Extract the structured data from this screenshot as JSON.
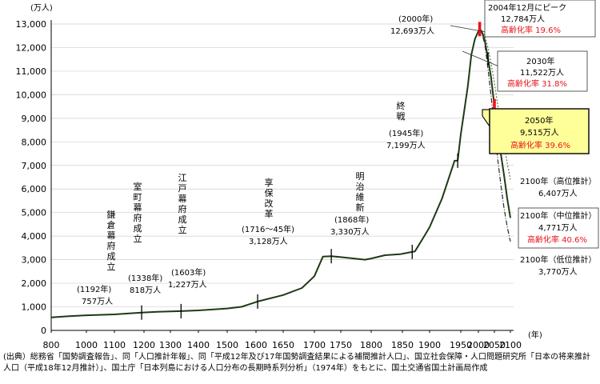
{
  "chart_data": {
    "type": "line",
    "yunit": "(万人)",
    "xunit": "(年)",
    "xlim": [
      800,
      2100
    ],
    "ylim": [
      0,
      13000
    ],
    "xticks": [
      "800",
      "1000",
      "1100",
      "1200",
      "1300",
      "1400",
      "1500",
      "1600",
      "1650",
      "1700",
      "1750",
      "1800",
      "1850",
      "1900",
      "1950",
      "2000",
      "2050",
      "2100"
    ],
    "yticks": [
      "0",
      "1,000",
      "2,000",
      "3,000",
      "4,000",
      "5,000",
      "6,000",
      "7,000",
      "8,000",
      "9,000",
      "10,000",
      "11,000",
      "12,000",
      "13,000"
    ],
    "series": [
      {
        "key": "history",
        "color": "#1e3a14",
        "x": [
          800,
          900,
          1000,
          1100,
          1150,
          1192,
          1250,
          1338,
          1400,
          1500,
          1550,
          1603,
          1650,
          1680,
          1700,
          1716,
          1732,
          1750,
          1790,
          1800,
          1822,
          1846,
          1868,
          1873,
          1890,
          1900,
          1920,
          1930,
          1940,
          1945,
          1950,
          1960,
          1970,
          1980,
          1990,
          2000,
          2004
        ],
        "y": [
          551,
          600,
          640,
          680,
          720,
          757,
          790,
          818,
          850,
          930,
          1000,
          1227,
          1500,
          1800,
          2300,
          3128,
          3150,
          3110,
          3000,
          3050,
          3190,
          3230,
          3330,
          3350,
          3990,
          4380,
          5600,
          6400,
          7200,
          7199,
          8320,
          9340,
          10370,
          11700,
          12360,
          12693,
          12784
        ]
      },
      {
        "key": "medium",
        "color": "#1e3a14",
        "x": [
          2004,
          2010,
          2020,
          2030,
          2040,
          2050,
          2060,
          2070,
          2080,
          2090,
          2100
        ],
        "y": [
          12784,
          12700,
          12300,
          11522,
          10700,
          9515,
          8600,
          7500,
          6600,
          5600,
          4771
        ]
      },
      {
        "key": "high",
        "color": "#5a7a4a",
        "dash": "2,2",
        "x": [
          2004,
          2010,
          2020,
          2030,
          2040,
          2050,
          2060,
          2070,
          2080,
          2090,
          2100
        ],
        "y": [
          12784,
          12750,
          12500,
          12000,
          11300,
          10500,
          9600,
          8700,
          7900,
          7100,
          6407
        ]
      },
      {
        "key": "low",
        "color": "#2a2a2a",
        "dash": "6,2,1,2",
        "x": [
          2004,
          2010,
          2020,
          2030,
          2040,
          2050,
          2060,
          2070,
          2080,
          2090,
          2100
        ],
        "y": [
          12784,
          12650,
          12150,
          11100,
          9900,
          8600,
          7300,
          6200,
          5200,
          4400,
          3770
        ]
      }
    ],
    "tick_marks": [
      1192,
      1338,
      1603,
      1732,
      1868,
      1945
    ],
    "red_marks": [
      2004,
      2050
    ],
    "annotations": {
      "kamakura": {
        "label": "鎌倉幕府成立",
        "year": "(1192年)",
        "value": "757万人"
      },
      "muromachi": {
        "label": "室町幕府成立",
        "year": "(1338年)",
        "value": "818万人"
      },
      "edo": {
        "label": "江戸幕府成立",
        "year": "(1603年)",
        "value": "1,227万人"
      },
      "kyoho": {
        "label": "享保改革",
        "year": "(1716～45年)",
        "value": "3,128万人"
      },
      "meiji": {
        "label": "明治維新",
        "year": "(1868年)",
        "value": "3,330万人"
      },
      "shusen": {
        "label": "終戦",
        "year": "(1945年)",
        "value": "7,199万人"
      },
      "y2000": {
        "year": "(2000年)",
        "value": "12,693万人"
      },
      "peak": {
        "line1": "2004年12月にピーク",
        "line2": "12,784万人",
        "line3": "高齢化率 19.6%"
      },
      "y2030": {
        "line1": "2030年",
        "line2": "11,522万人",
        "line3": "高齢化率 31.8%"
      },
      "y2050": {
        "line1": "2050年",
        "line2": "9,515万人",
        "line3": "高齢化率 39.6%"
      },
      "high2100": {
        "line1": "2100年（高位推計）",
        "line2": "6,407万人"
      },
      "mid2100": {
        "line1": "2100年（中位推計）",
        "line2": "4,771万人",
        "line3": "高齢化率 40.6%"
      },
      "low2100": {
        "line1": "2100年（低位推計）",
        "line2": "3,770万人"
      }
    }
  },
  "footnote": "(出典）総務省「国勢調査報告」、同「人口推計年報」、同「平成12年及び17年国勢調査結果による補間推計人口」、国立社会保障・人口問題研究所「日本の将来推計人口（平成18年12月推計）」、国土庁「日本列島における人口分布の長期時系列分析」（1974年）をもとに、国土交通省国土計画局作成",
  "colors": {
    "line": "#1e3a14",
    "red": "#e8141c",
    "highlight_fill": "#ffff99",
    "highlight_border": "#111111"
  }
}
